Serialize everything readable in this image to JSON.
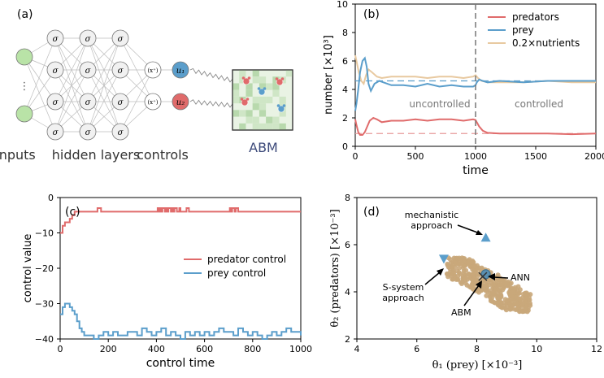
{
  "colors": {
    "predator": "#e06b6b",
    "prey": "#5b9ecb",
    "nutrients": "#e8c9a0",
    "cloud": "#c9a77a",
    "ref_dash": "#e89a9a",
    "grid_bg": "#e9f3e4",
    "grid_tile": "#cfe6c6",
    "input_fill": "#b9e3a7",
    "sigma_fill": "#f1f1f1",
    "neuron_stroke": "#777777"
  },
  "panel_a": {
    "label": "(a)",
    "sigma": "σ",
    "relu": "(x⁺)",
    "u1": "u₁",
    "u2": "u₂",
    "dots": "⋮",
    "abm": "ABM",
    "captions": [
      "inputs",
      "hidden layers",
      "controls"
    ]
  },
  "panel_b": {
    "label": "(b)",
    "ylabel": "number [×10³]",
    "xlabel": "time",
    "xticks": [
      "0",
      "500",
      "1000",
      "1500",
      "2000"
    ],
    "yticks": [
      "0",
      "2",
      "4",
      "6",
      "8",
      "10"
    ],
    "annot_uncontrolled": "uncontrolled",
    "annot_controlled": "controlled",
    "legend": [
      "predators",
      "prey",
      "0.2×nutrients"
    ]
  },
  "panel_c": {
    "label": "(c)",
    "ylabel": "control value",
    "xlabel": "control time",
    "xticks": [
      "0",
      "200",
      "400",
      "600",
      "800",
      "1000"
    ],
    "yticks": [
      "0",
      "−10",
      "−20",
      "−30",
      "−40"
    ],
    "legend": [
      "predator control",
      "prey control"
    ]
  },
  "panel_d": {
    "label": "(d)",
    "ylabel": "θ₂ (predators) [×10⁻³]",
    "xlabel": "θ₁ (prey) [×10⁻³]",
    "xticks": [
      "4",
      "6",
      "8",
      "10",
      "12"
    ],
    "yticks": [
      "2",
      "4",
      "6",
      "8"
    ],
    "ann_mech": [
      "mechanistic",
      "approach"
    ],
    "ann_ssys": [
      "S-system",
      "approach"
    ],
    "ann_ann": "ANN",
    "ann_abm": "ABM"
  },
  "chart_data": [
    {
      "type": "line",
      "title": "(b)",
      "xlabel": "time",
      "ylabel": "number [×10³]",
      "xlim": [
        0,
        2000
      ],
      "ylim": [
        0,
        10
      ],
      "vline_x": 1000,
      "series": [
        {
          "name": "predators",
          "x": [
            0,
            10,
            25,
            40,
            60,
            80,
            100,
            120,
            150,
            180,
            220,
            300,
            400,
            500,
            600,
            700,
            800,
            900,
            980,
            1000,
            1010,
            1030,
            1060,
            1100,
            1200,
            1400,
            1600,
            1800,
            2000
          ],
          "y": [
            1.9,
            1.5,
            1.0,
            0.8,
            0.8,
            1.0,
            1.4,
            1.8,
            2.0,
            1.9,
            1.7,
            1.8,
            1.8,
            1.9,
            1.8,
            1.9,
            1.9,
            1.8,
            1.9,
            1.85,
            1.7,
            1.4,
            1.1,
            0.95,
            0.9,
            0.9,
            0.9,
            0.85,
            0.9
          ]
        },
        {
          "name": "prey",
          "x": [
            0,
            10,
            25,
            40,
            60,
            80,
            95,
            110,
            130,
            160,
            200,
            300,
            400,
            500,
            600,
            700,
            800,
            900,
            980,
            1000,
            1010,
            1030,
            1060,
            1100,
            1200,
            1400,
            1600,
            1800,
            2000
          ],
          "y": [
            2.5,
            3.0,
            4.0,
            5.2,
            6.0,
            6.2,
            5.6,
            4.4,
            3.9,
            4.4,
            4.6,
            4.3,
            4.3,
            4.2,
            4.4,
            4.2,
            4.3,
            4.2,
            4.2,
            4.3,
            4.5,
            4.7,
            4.6,
            4.5,
            4.6,
            4.5,
            4.6,
            4.6,
            4.6
          ]
        },
        {
          "name": "0.2×nutrients",
          "x": [
            0,
            10,
            30,
            50,
            70,
            90,
            110,
            140,
            180,
            220,
            300,
            400,
            500,
            600,
            700,
            800,
            900,
            980,
            1000,
            1020,
            1050,
            1100,
            1200,
            1400,
            1600,
            1800,
            2000
          ],
          "y": [
            6.4,
            6.0,
            5.2,
            4.6,
            4.4,
            5.0,
            5.4,
            5.2,
            4.9,
            4.8,
            4.9,
            4.9,
            4.9,
            4.8,
            4.9,
            4.9,
            4.8,
            4.9,
            5.0,
            4.8,
            4.6,
            4.5,
            4.5,
            4.5,
            4.6,
            4.5,
            4.5
          ]
        }
      ],
      "reference_lines": [
        {
          "series": "prey",
          "y": 4.6
        },
        {
          "series": "predators",
          "y": 0.9
        }
      ]
    },
    {
      "type": "line",
      "title": "(c)",
      "xlabel": "control time",
      "ylabel": "control value",
      "xlim": [
        0,
        1000
      ],
      "ylim": [
        -40,
        0
      ],
      "series": [
        {
          "name": "predator control",
          "x": [
            0,
            10,
            20,
            30,
            40,
            50,
            60,
            80,
            100,
            150,
            155,
            165,
            170,
            400,
            405,
            410,
            415,
            420,
            425,
            430,
            435,
            440,
            445,
            450,
            455,
            460,
            465,
            470,
            475,
            480,
            485,
            490,
            495,
            500,
            520,
            525,
            530,
            535,
            700,
            705,
            710,
            715,
            720,
            725,
            730,
            740,
            1000
          ],
          "y": [
            -10,
            -8,
            -7,
            -7,
            -6,
            -5,
            -4,
            -4,
            -4,
            -4,
            -3,
            -3,
            -4,
            -4,
            -3,
            -4,
            -3,
            -4,
            -3,
            -3,
            -4,
            -3,
            -4,
            -3,
            -3,
            -4,
            -3,
            -4,
            -3,
            -3,
            -4,
            -4,
            -3,
            -4,
            -4,
            -3,
            -3,
            -4,
            -4,
            -3,
            -4,
            -3,
            -3,
            -4,
            -3,
            -4,
            -4
          ]
        },
        {
          "name": "prey control",
          "x": [
            0,
            10,
            20,
            30,
            40,
            50,
            60,
            70,
            80,
            90,
            100,
            120,
            140,
            160,
            180,
            200,
            220,
            240,
            260,
            280,
            300,
            320,
            340,
            360,
            380,
            400,
            420,
            440,
            460,
            480,
            500,
            520,
            540,
            560,
            580,
            600,
            620,
            640,
            660,
            680,
            700,
            720,
            740,
            760,
            780,
            800,
            820,
            840,
            860,
            880,
            900,
            920,
            940,
            960,
            980,
            1000
          ],
          "y": [
            -33,
            -31,
            -30,
            -30,
            -31,
            -32,
            -33,
            -35,
            -37,
            -38,
            -39,
            -39,
            -40,
            -39,
            -38,
            -39,
            -38,
            -39,
            -39,
            -38,
            -38,
            -39,
            -37,
            -38,
            -39,
            -38,
            -37,
            -39,
            -38,
            -39,
            -40,
            -38,
            -39,
            -38,
            -39,
            -38,
            -39,
            -38,
            -37,
            -38,
            -38,
            -39,
            -37,
            -38,
            -39,
            -38,
            -39,
            -40,
            -39,
            -38,
            -39,
            -38,
            -37,
            -38,
            -38,
            -39
          ]
        }
      ]
    },
    {
      "type": "scatter",
      "title": "(d)",
      "xlabel": "θ₁ (prey) [×10⁻³]",
      "ylabel": "θ₂ (predators) [×10⁻³]",
      "xlim": [
        4,
        12
      ],
      "ylim": [
        2,
        8
      ],
      "cloud": {
        "x_range": [
          7.0,
          9.8
        ],
        "y_range": [
          3.2,
          5.4
        ],
        "trend": "negative"
      },
      "markers": [
        {
          "name": "mechanistic approach",
          "x": 8.3,
          "y": 6.3,
          "marker": "triangle-up"
        },
        {
          "name": "S-system approach",
          "x": 6.9,
          "y": 5.4,
          "marker": "triangle-down"
        },
        {
          "name": "ANN",
          "x": 8.3,
          "y": 4.75,
          "marker": "circle"
        },
        {
          "name": "ABM",
          "x": 8.2,
          "y": 4.65,
          "marker": "x"
        }
      ]
    }
  ]
}
